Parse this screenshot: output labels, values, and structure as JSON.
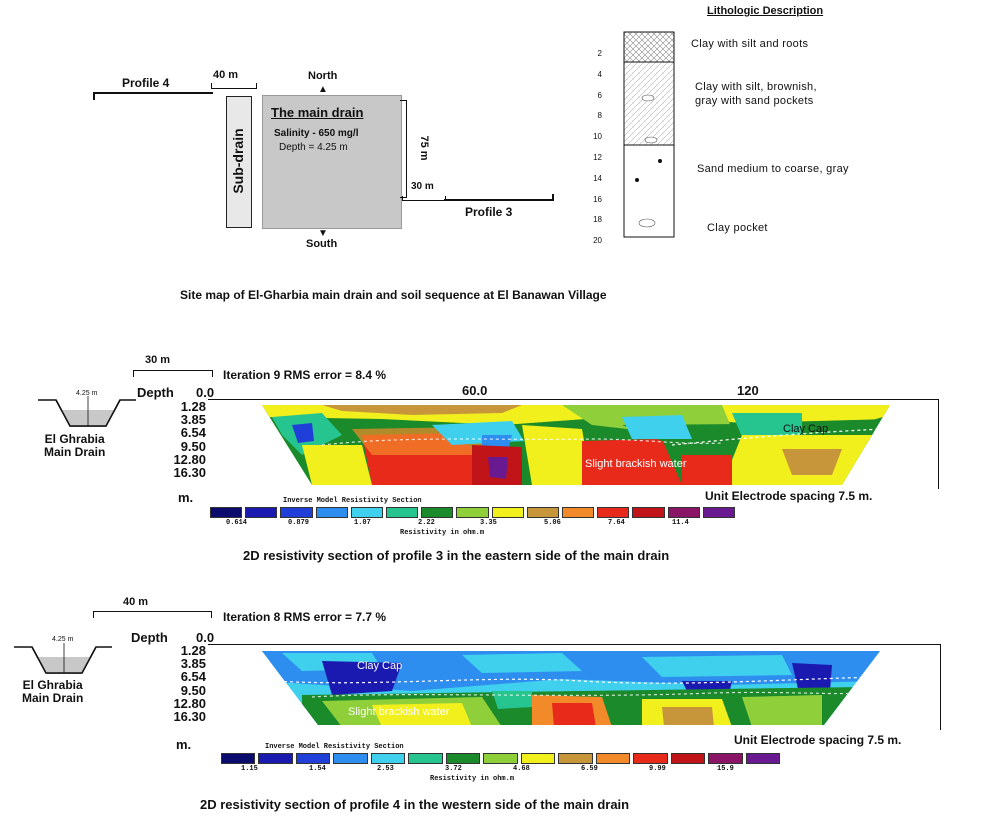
{
  "sitemap": {
    "profile4": "Profile 4",
    "dist40": "40 m",
    "north": "North",
    "south": "South",
    "subdrain": "Sub-drain",
    "main_drain_title": "The main drain",
    "salinity": "Salinity - 650 mg/l",
    "depth": "Depth = 4.25 m",
    "dist75": "75 m",
    "dist30": "30 m",
    "profile3": "Profile 3",
    "caption": "Site map of El-Gharbia main drain and soil sequence at El Banawan Village"
  },
  "litho": {
    "title": "Lithologic Description",
    "depth_ticks": [
      "2",
      "4",
      "6",
      "8",
      "10",
      "12",
      "14",
      "16",
      "18",
      "20"
    ],
    "layers": [
      {
        "label": "Clay with silt and roots"
      },
      {
        "label": "Clay with silt, brownish,\ngray with sand pockets"
      },
      {
        "label": "Sand medium to coarse, gray"
      },
      {
        "label": "Clay pocket"
      }
    ]
  },
  "section3": {
    "scale": "30 m",
    "header": "Iteration  9  RMS error = 8.4 %",
    "depth_label": "Depth",
    "x_ticks": [
      "0.0",
      "60.0",
      "120"
    ],
    "depths": [
      "1.28",
      "3.85",
      "6.54",
      "9.50",
      "12.80",
      "16.30"
    ],
    "unit": "m.",
    "drain_depth": "4.25 m",
    "drain_label": "El Ghrabia\nMain Drain",
    "annotation1": "Clay Cap",
    "annotation2": "Slight brackish water",
    "spacing": "Unit Electrode spacing 7.5 m.",
    "legend_title": "Inverse Model Resistivity Section",
    "legend_values": [
      "0.614",
      "0.879",
      "1.07",
      "2.22",
      "3.35",
      "5.06",
      "7.64",
      "11.4"
    ],
    "legend_unit": "Resistivity in ohm.m",
    "caption": "2D resistivity section of profile 3  in the eastern side of the main drain"
  },
  "section4": {
    "scale": "40 m",
    "header": "Iteration  8  RMS error = 7.7 %",
    "depth_label": "Depth",
    "x_tick": "0.0",
    "depths": [
      "1.28",
      "3.85",
      "6.54",
      "9.50",
      "12.80",
      "16.30"
    ],
    "unit": "m.",
    "drain_depth": "4.25 m",
    "drain_label": "El Ghrabia\nMain Drain",
    "annotation1": "Clay Cap",
    "annotation2": "Slight brackish water",
    "spacing": "Unit Electrode spacing 7.5 m.",
    "legend_title": "Inverse Model Resistivity Section",
    "legend_values": [
      "1.15",
      "1.54",
      "2.53",
      "3.72",
      "4.68",
      "6.59",
      "9.99",
      "15.9"
    ],
    "legend_unit": "Resistivity in ohm.m",
    "caption": "2D resistivity section of profile 4  in the western side of the main drain"
  },
  "colors": {
    "scale": [
      "#0b0b6e",
      "#1a1ab0",
      "#1f3fd8",
      "#2e8ef0",
      "#3fd0ee",
      "#26c48e",
      "#1a8a2a",
      "#8fcf3a",
      "#f2f01c",
      "#c8963a",
      "#f28a2a",
      "#e82a1a",
      "#c01418",
      "#8a1466",
      "#6a1a90"
    ],
    "drain_fill": "#c8c8c8"
  }
}
